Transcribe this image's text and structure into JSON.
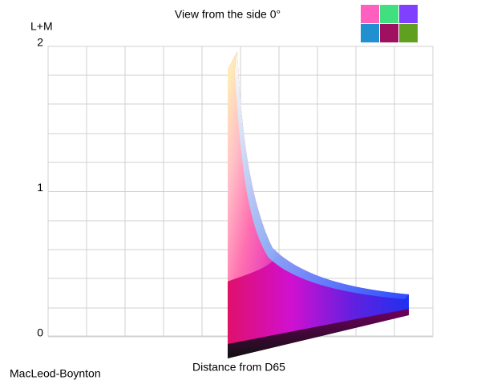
{
  "chart_data": {
    "type": "solid-view",
    "title": "View from the side 0°",
    "ylabel": "L+M",
    "xlabel": "Distance from D65",
    "corner_label": "MacLeod-Boynton",
    "ylim": [
      0,
      2
    ],
    "yticks": [
      0,
      1,
      2
    ],
    "grid": true
  }
}
